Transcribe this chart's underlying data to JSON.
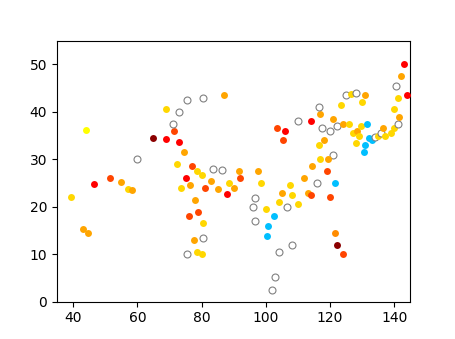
{
  "map_extent": [
    35,
    145,
    0,
    55
  ],
  "background_color": "#ffffff",
  "border_color": "#000000",
  "dot_size": 60,
  "dots": [
    {
      "lon": 44.0,
      "lat": 36.2,
      "color": "#ffff00"
    },
    {
      "lon": 51.5,
      "lat": 26.0,
      "color": "#ff4500"
    },
    {
      "lon": 55.0,
      "lat": 25.3,
      "color": "#ffa500"
    },
    {
      "lon": 57.0,
      "lat": 23.7,
      "color": "#ffd700"
    },
    {
      "lon": 46.5,
      "lat": 24.7,
      "color": "#ff0000"
    },
    {
      "lon": 39.5,
      "lat": 22.0,
      "color": "#ffd700"
    },
    {
      "lon": 44.8,
      "lat": 14.5,
      "color": "#ffa500"
    },
    {
      "lon": 43.2,
      "lat": 15.4,
      "color": "#ffa500"
    },
    {
      "lon": 58.5,
      "lat": 23.5,
      "color": "#ffa500"
    },
    {
      "lon": 60.0,
      "lat": 30.0,
      "color": "#ffffff"
    },
    {
      "lon": 65.0,
      "lat": 34.5,
      "color": "#8b0000"
    },
    {
      "lon": 69.0,
      "lat": 34.3,
      "color": "#ff0000"
    },
    {
      "lon": 71.5,
      "lat": 36.0,
      "color": "#ff4500"
    },
    {
      "lon": 73.0,
      "lat": 33.6,
      "color": "#ff0000"
    },
    {
      "lon": 74.5,
      "lat": 31.5,
      "color": "#ffa500"
    },
    {
      "lon": 72.5,
      "lat": 29.0,
      "color": "#ffd700"
    },
    {
      "lon": 77.0,
      "lat": 28.6,
      "color": "#ff4500"
    },
    {
      "lon": 78.5,
      "lat": 27.5,
      "color": "#ffd700"
    },
    {
      "lon": 75.0,
      "lat": 26.0,
      "color": "#ff0000"
    },
    {
      "lon": 73.5,
      "lat": 24.0,
      "color": "#ffd700"
    },
    {
      "lon": 76.5,
      "lat": 24.5,
      "color": "#ffa500"
    },
    {
      "lon": 80.0,
      "lat": 26.8,
      "color": "#ffd700"
    },
    {
      "lon": 81.0,
      "lat": 24.0,
      "color": "#ff4500"
    },
    {
      "lon": 83.0,
      "lat": 25.5,
      "color": "#ffa500"
    },
    {
      "lon": 78.0,
      "lat": 21.5,
      "color": "#ffa500"
    },
    {
      "lon": 79.0,
      "lat": 19.0,
      "color": "#ff4500"
    },
    {
      "lon": 76.0,
      "lat": 18.0,
      "color": "#ff4500"
    },
    {
      "lon": 80.5,
      "lat": 16.5,
      "color": "#ffd700"
    },
    {
      "lon": 77.5,
      "lat": 13.0,
      "color": "#ffa500"
    },
    {
      "lon": 80.5,
      "lat": 13.5,
      "color": "#ffffff"
    },
    {
      "lon": 78.5,
      "lat": 10.5,
      "color": "#ffd700"
    },
    {
      "lon": 80.0,
      "lat": 10.0,
      "color": "#ffd700"
    },
    {
      "lon": 75.5,
      "lat": 10.0,
      "color": "#ffffff"
    },
    {
      "lon": 85.0,
      "lat": 23.8,
      "color": "#ffa500"
    },
    {
      "lon": 88.0,
      "lat": 22.6,
      "color": "#ff0000"
    },
    {
      "lon": 88.5,
      "lat": 25.0,
      "color": "#ffd700"
    },
    {
      "lon": 90.0,
      "lat": 24.0,
      "color": "#ffa500"
    },
    {
      "lon": 92.0,
      "lat": 26.0,
      "color": "#ff4500"
    },
    {
      "lon": 91.5,
      "lat": 27.5,
      "color": "#ffa500"
    },
    {
      "lon": 86.5,
      "lat": 27.8,
      "color": "#ffffff"
    },
    {
      "lon": 83.5,
      "lat": 28.0,
      "color": "#ffffff"
    },
    {
      "lon": 96.5,
      "lat": 17.0,
      "color": "#ffffff"
    },
    {
      "lon": 96.5,
      "lat": 21.8,
      "color": "#ffffff"
    },
    {
      "lon": 96.0,
      "lat": 20.0,
      "color": "#ffffff"
    },
    {
      "lon": 100.5,
      "lat": 13.8,
      "color": "#00bfff"
    },
    {
      "lon": 100.8,
      "lat": 16.0,
      "color": "#00bfff"
    },
    {
      "lon": 103.0,
      "lat": 5.3,
      "color": "#ffffff"
    },
    {
      "lon": 104.0,
      "lat": 10.5,
      "color": "#ffffff"
    },
    {
      "lon": 102.0,
      "lat": 2.5,
      "color": "#ffffff"
    },
    {
      "lon": 108.0,
      "lat": 12.0,
      "color": "#ffffff"
    },
    {
      "lon": 102.5,
      "lat": 18.0,
      "color": "#00bfff"
    },
    {
      "lon": 100.0,
      "lat": 19.5,
      "color": "#ffd700"
    },
    {
      "lon": 98.5,
      "lat": 25.0,
      "color": "#ffd700"
    },
    {
      "lon": 97.5,
      "lat": 27.5,
      "color": "#ffa500"
    },
    {
      "lon": 104.0,
      "lat": 21.0,
      "color": "#ffd700"
    },
    {
      "lon": 106.5,
      "lat": 20.0,
      "color": "#ffffff"
    },
    {
      "lon": 105.0,
      "lat": 23.0,
      "color": "#ffa500"
    },
    {
      "lon": 107.5,
      "lat": 24.5,
      "color": "#ffd700"
    },
    {
      "lon": 108.0,
      "lat": 22.5,
      "color": "#ffd700"
    },
    {
      "lon": 110.0,
      "lat": 20.5,
      "color": "#ffd700"
    },
    {
      "lon": 113.0,
      "lat": 23.0,
      "color": "#ffa500"
    },
    {
      "lon": 112.0,
      "lat": 26.0,
      "color": "#ffa500"
    },
    {
      "lon": 114.0,
      "lat": 22.5,
      "color": "#ff4500"
    },
    {
      "lon": 116.0,
      "lat": 25.0,
      "color": "#ffffff"
    },
    {
      "lon": 114.5,
      "lat": 28.5,
      "color": "#ffa500"
    },
    {
      "lon": 117.0,
      "lat": 30.0,
      "color": "#ffd700"
    },
    {
      "lon": 116.5,
      "lat": 33.0,
      "color": "#ffd700"
    },
    {
      "lon": 118.0,
      "lat": 34.0,
      "color": "#ffa500"
    },
    {
      "lon": 117.5,
      "lat": 36.5,
      "color": "#ffffff"
    },
    {
      "lon": 120.0,
      "lat": 36.0,
      "color": "#ffffff"
    },
    {
      "lon": 121.0,
      "lat": 31.0,
      "color": "#ffffff"
    },
    {
      "lon": 119.5,
      "lat": 30.0,
      "color": "#ffa500"
    },
    {
      "lon": 119.0,
      "lat": 27.5,
      "color": "#ff4500"
    },
    {
      "lon": 121.5,
      "lat": 25.0,
      "color": "#00bfff"
    },
    {
      "lon": 114.0,
      "lat": 38.0,
      "color": "#ff0000"
    },
    {
      "lon": 117.0,
      "lat": 39.5,
      "color": "#ffa500"
    },
    {
      "lon": 116.5,
      "lat": 41.0,
      "color": "#ffffff"
    },
    {
      "lon": 123.5,
      "lat": 41.5,
      "color": "#ffd700"
    },
    {
      "lon": 125.0,
      "lat": 43.5,
      "color": "#ffffff"
    },
    {
      "lon": 126.5,
      "lat": 43.8,
      "color": "#ffd700"
    },
    {
      "lon": 128.0,
      "lat": 44.0,
      "color": "#ffffff"
    },
    {
      "lon": 121.0,
      "lat": 38.5,
      "color": "#ffa500"
    },
    {
      "lon": 122.0,
      "lat": 37.0,
      "color": "#ffffff"
    },
    {
      "lon": 124.0,
      "lat": 37.5,
      "color": "#ffa500"
    },
    {
      "lon": 126.0,
      "lat": 37.5,
      "color": "#ffd700"
    },
    {
      "lon": 127.0,
      "lat": 35.5,
      "color": "#ffd700"
    },
    {
      "lon": 128.5,
      "lat": 36.0,
      "color": "#ffa500"
    },
    {
      "lon": 129.5,
      "lat": 37.0,
      "color": "#ffd700"
    },
    {
      "lon": 129.0,
      "lat": 35.0,
      "color": "#ffd700"
    },
    {
      "lon": 128.0,
      "lat": 33.5,
      "color": "#ffd700"
    },
    {
      "lon": 131.0,
      "lat": 33.0,
      "color": "#00bfff"
    },
    {
      "lon": 132.0,
      "lat": 34.5,
      "color": "#00bfff"
    },
    {
      "lon": 133.0,
      "lat": 34.0,
      "color": "#00bfff"
    },
    {
      "lon": 130.5,
      "lat": 31.5,
      "color": "#00bfff"
    },
    {
      "lon": 134.0,
      "lat": 34.8,
      "color": "#ffffff"
    },
    {
      "lon": 135.0,
      "lat": 35.0,
      "color": "#ffd700"
    },
    {
      "lon": 136.0,
      "lat": 35.5,
      "color": "#ffffff"
    },
    {
      "lon": 137.0,
      "lat": 35.0,
      "color": "#ffd700"
    },
    {
      "lon": 136.5,
      "lat": 36.5,
      "color": "#ffa500"
    },
    {
      "lon": 139.0,
      "lat": 35.5,
      "color": "#ffd700"
    },
    {
      "lon": 140.0,
      "lat": 36.5,
      "color": "#ffd700"
    },
    {
      "lon": 141.0,
      "lat": 37.5,
      "color": "#ffffff"
    },
    {
      "lon": 141.5,
      "lat": 39.0,
      "color": "#ffa500"
    },
    {
      "lon": 140.0,
      "lat": 40.5,
      "color": "#ffd700"
    },
    {
      "lon": 141.0,
      "lat": 43.0,
      "color": "#ffd700"
    },
    {
      "lon": 144.0,
      "lat": 43.5,
      "color": "#ff0000"
    },
    {
      "lon": 140.5,
      "lat": 45.5,
      "color": "#ffffff"
    },
    {
      "lon": 142.0,
      "lat": 47.5,
      "color": "#ffa500"
    },
    {
      "lon": 143.0,
      "lat": 50.0,
      "color": "#ff0000"
    },
    {
      "lon": 131.0,
      "lat": 43.5,
      "color": "#ffa500"
    },
    {
      "lon": 130.0,
      "lat": 42.0,
      "color": "#ffd700"
    },
    {
      "lon": 131.5,
      "lat": 37.5,
      "color": "#00bfff"
    },
    {
      "lon": 120.0,
      "lat": 22.0,
      "color": "#ff4500"
    },
    {
      "lon": 121.5,
      "lat": 14.5,
      "color": "#ff8c00"
    },
    {
      "lon": 122.0,
      "lat": 12.0,
      "color": "#8b0000"
    },
    {
      "lon": 124.0,
      "lat": 10.0,
      "color": "#ff4500"
    },
    {
      "lon": 110.0,
      "lat": 38.0,
      "color": "#ffffff"
    },
    {
      "lon": 106.0,
      "lat": 36.0,
      "color": "#ff0000"
    },
    {
      "lon": 103.5,
      "lat": 36.5,
      "color": "#ff4500"
    },
    {
      "lon": 105.5,
      "lat": 34.0,
      "color": "#ff4500"
    },
    {
      "lon": 87.0,
      "lat": 43.5,
      "color": "#ffa500"
    },
    {
      "lon": 80.5,
      "lat": 43.0,
      "color": "#ffffff"
    },
    {
      "lon": 75.5,
      "lat": 42.5,
      "color": "#ffffff"
    },
    {
      "lon": 73.0,
      "lat": 40.0,
      "color": "#ffffff"
    },
    {
      "lon": 71.0,
      "lat": 37.5,
      "color": "#ffffff"
    },
    {
      "lon": 69.0,
      "lat": 40.5,
      "color": "#ffd700"
    }
  ]
}
